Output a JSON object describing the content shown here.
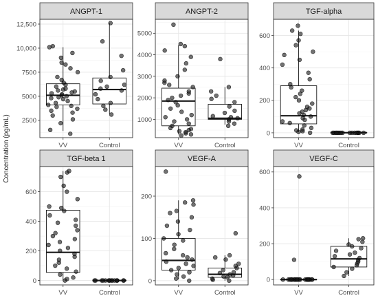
{
  "ylabel": "Concentration (pg/mL)",
  "colors": {
    "strip": "#d9d9d9",
    "point": "#333333",
    "grid": "#e6e6e6"
  },
  "chart_data": [
    {
      "type": "box",
      "title": "ANGPT-1",
      "categories": [
        "VV",
        "Control"
      ],
      "ylim": [
        700,
        13000
      ],
      "yticks": [
        2500,
        5000,
        7500,
        10000,
        12500
      ],
      "ytick_labels": [
        "2500",
        "5000",
        "7500",
        "10,000",
        "12,500"
      ],
      "boxes": [
        {
          "category": "VV",
          "min": 1400,
          "q1": 4100,
          "median": 5100,
          "q3": 6300,
          "max": 10100
        },
        {
          "category": "Control",
          "min": 3200,
          "q1": 4200,
          "median": 5700,
          "q3": 6900,
          "max": 12600
        }
      ],
      "points": {
        "VV": [
          1100,
          1500,
          2200,
          2600,
          3000,
          3300,
          3500,
          3700,
          3900,
          4000,
          4100,
          4300,
          4500,
          4700,
          4800,
          4900,
          5000,
          5100,
          5200,
          5300,
          5400,
          5500,
          5600,
          5700,
          5800,
          6000,
          6200,
          6400,
          6700,
          7000,
          7500,
          7900,
          8300,
          8500,
          9000,
          9500,
          10100,
          10200
        ],
        "Control": [
          3100,
          3600,
          4000,
          4300,
          4700,
          5200,
          5600,
          5800,
          6000,
          6200,
          6600,
          7000,
          7700,
          9200,
          10700,
          12600
        ]
      }
    },
    {
      "type": "box",
      "title": "ANGPT-2",
      "categories": [
        "VV",
        "Control"
      ],
      "ylim": [
        150,
        5650
      ],
      "yticks": [
        1000,
        2000,
        3000,
        4000,
        5000
      ],
      "ytick_labels": [
        "1000",
        "2000",
        "3000",
        "4000",
        "5000"
      ],
      "boxes": [
        {
          "category": "VV",
          "min": 300,
          "q1": 700,
          "median": 1850,
          "q3": 2450,
          "max": 4450
        },
        {
          "category": "Control",
          "min": 750,
          "q1": 1000,
          "median": 1050,
          "q3": 1700,
          "max": 2500
        }
      ],
      "points": {
        "VV": [
          250,
          300,
          350,
          400,
          450,
          500,
          550,
          600,
          700,
          800,
          900,
          1000,
          1100,
          1200,
          1350,
          1500,
          1650,
          1800,
          1900,
          2000,
          2100,
          2200,
          2300,
          2500,
          2600,
          2700,
          2800,
          3000,
          3300,
          3600,
          3900,
          4200,
          4400,
          4500,
          5400
        ],
        "Control": [
          700,
          800,
          900,
          1000,
          1050,
          1100,
          1150,
          1300,
          1400,
          1600,
          1800,
          1950,
          2100,
          2300,
          2500,
          3800
        ]
      }
    },
    {
      "type": "box",
      "title": "TGF-alpha",
      "categories": [
        "VV",
        "Control"
      ],
      "ylim": [
        -30,
        700
      ],
      "yticks": [
        0,
        200,
        400,
        600
      ],
      "ytick_labels": [
        "0",
        "200",
        "400",
        "600"
      ],
      "boxes": [
        {
          "category": "VV",
          "min": 5,
          "q1": 55,
          "median": 105,
          "q3": 290,
          "max": 630
        },
        {
          "category": "Control",
          "min": 0,
          "q1": 0,
          "median": 0,
          "q3": 3,
          "max": 5
        }
      ],
      "points": {
        "VV": [
          0,
          5,
          10,
          15,
          20,
          30,
          45,
          60,
          70,
          80,
          90,
          100,
          110,
          120,
          130,
          140,
          150,
          160,
          180,
          200,
          220,
          240,
          260,
          280,
          300,
          330,
          370,
          420,
          450,
          480,
          500,
          540,
          570,
          610,
          630,
          660
        ],
        "Control": [
          0,
          0,
          0,
          0,
          0,
          0,
          0,
          0,
          0,
          0,
          0,
          0,
          0,
          0,
          0,
          0
        ]
      }
    },
    {
      "type": "box",
      "title": "TGF-beta 1",
      "categories": [
        "VV",
        "Control"
      ],
      "ylim": [
        -30,
        770
      ],
      "yticks": [
        0,
        200,
        400,
        600
      ],
      "ytick_labels": [
        "0",
        "200",
        "400",
        "600"
      ],
      "boxes": [
        {
          "category": "VV",
          "min": 0,
          "q1": 55,
          "median": 190,
          "q3": 475,
          "max": 740
        },
        {
          "category": "Control",
          "min": 0,
          "q1": 0,
          "median": 0,
          "q3": 2,
          "max": 5
        }
      ],
      "points": {
        "VV": [
          0,
          10,
          20,
          40,
          60,
          80,
          100,
          120,
          140,
          160,
          180,
          200,
          220,
          240,
          260,
          280,
          300,
          320,
          340,
          370,
          390,
          410,
          440,
          470,
          490,
          500,
          550,
          600,
          640,
          700,
          730,
          740
        ],
        "Control": [
          0,
          0,
          0,
          0,
          0,
          0,
          0,
          0,
          0,
          0,
          0,
          0,
          0,
          0,
          0,
          0
        ]
      }
    },
    {
      "type": "box",
      "title": "VEGF-A",
      "categories": [
        "VV",
        "Control"
      ],
      "ylim": [
        -10,
        270
      ],
      "yticks": [
        0,
        100,
        200
      ],
      "ytick_labels": [
        "0",
        "100",
        "200"
      ],
      "boxes": [
        {
          "category": "VV",
          "min": 3,
          "q1": 25,
          "median": 48,
          "q3": 100,
          "max": 190
        },
        {
          "category": "Control",
          "min": 0,
          "q1": 8,
          "median": 15,
          "q3": 30,
          "max": 60
        }
      ],
      "points": {
        "VV": [
          0,
          5,
          10,
          15,
          20,
          25,
          30,
          35,
          40,
          45,
          50,
          55,
          60,
          65,
          75,
          85,
          95,
          100,
          110,
          120,
          130,
          140,
          150,
          160,
          165,
          180,
          185,
          190,
          258
        ],
        "Control": [
          0,
          2,
          5,
          8,
          10,
          12,
          15,
          18,
          20,
          25,
          30,
          35,
          40,
          50,
          55,
          60,
          112
        ]
      }
    },
    {
      "type": "box",
      "title": "VEGF-C",
      "categories": [
        "VV",
        "Control"
      ],
      "ylim": [
        -30,
        630
      ],
      "yticks": [
        0,
        200,
        400,
        600
      ],
      "ytick_labels": [
        "0",
        "200",
        "400",
        "600"
      ],
      "boxes": [
        {
          "category": "VV",
          "min": 0,
          "q1": 0,
          "median": 0,
          "q3": 2,
          "max": 5
        },
        {
          "category": "Control",
          "min": 20,
          "q1": 70,
          "median": 115,
          "q3": 185,
          "max": 230
        }
      ],
      "points": {
        "VV": [
          0,
          0,
          0,
          0,
          0,
          0,
          0,
          0,
          0,
          0,
          0,
          0,
          0,
          0,
          0,
          0,
          0,
          0,
          0,
          0,
          0,
          0,
          0,
          0,
          110,
          575
        ],
        "Control": [
          20,
          40,
          60,
          70,
          80,
          90,
          100,
          110,
          120,
          130,
          140,
          150,
          160,
          175,
          185,
          195,
          210,
          225,
          230
        ]
      }
    }
  ]
}
